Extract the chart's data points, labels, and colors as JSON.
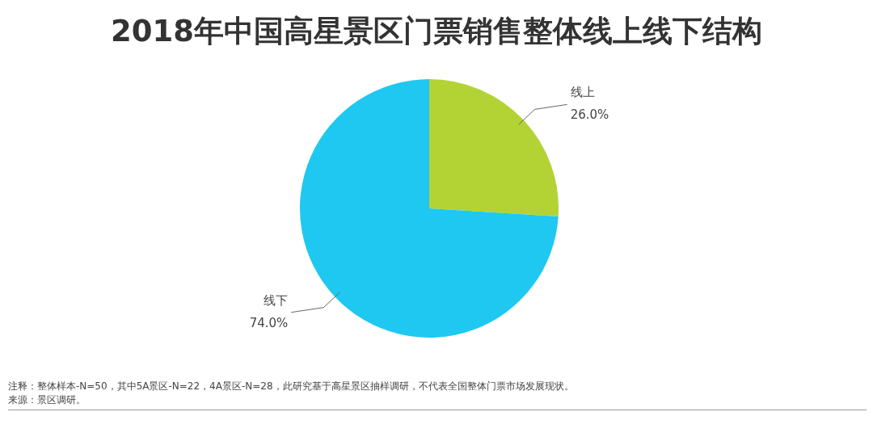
{
  "chart_data": {
    "type": "pie",
    "title": "2018年中国高星景区门票销售整体线上线下结构",
    "categories": [
      "线上",
      "线下"
    ],
    "values": [
      26.0,
      74.0
    ],
    "colors": [
      "#b3d335",
      "#1fc8f0"
    ],
    "value_labels": [
      "26.0%",
      "74.0%"
    ],
    "legend": false,
    "annotations": [
      "注释：整体样本-N=50，其中5A景区-N=22，4A景区-N=28，此研究基于高星景区抽样调研，不代表全国整体门票市场发展现状。",
      "来源：景区调研。"
    ]
  }
}
